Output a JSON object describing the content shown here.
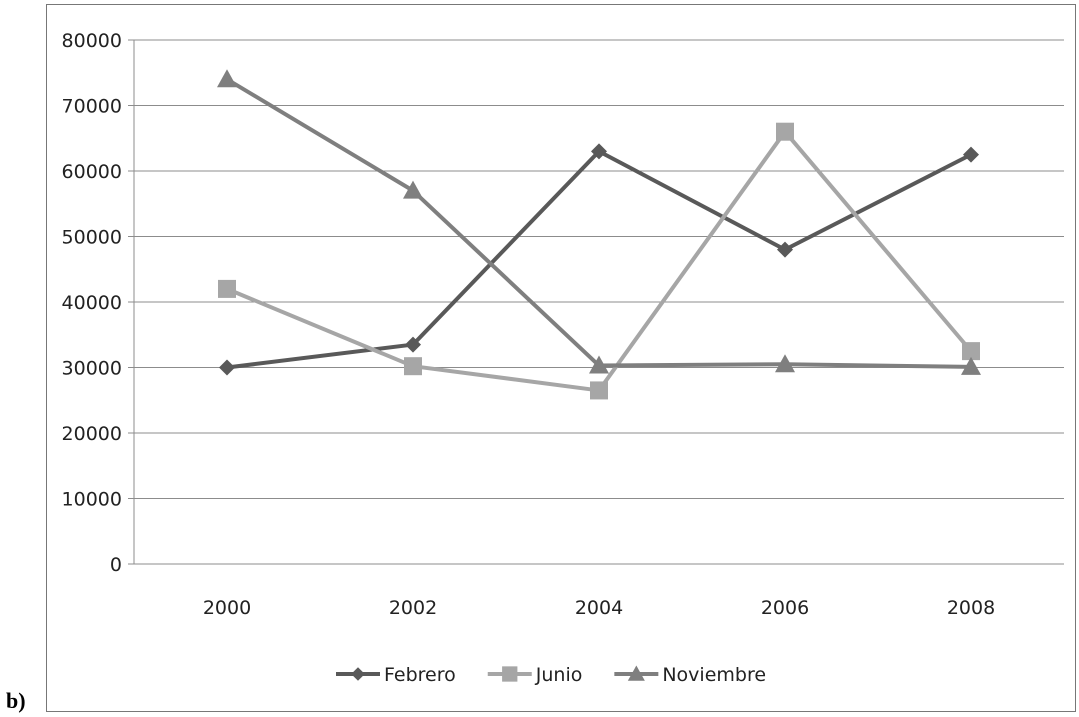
{
  "panel_label": "b)",
  "chart_data": {
    "type": "line",
    "title": "",
    "xlabel": "",
    "ylabel": "",
    "categories": [
      "2000",
      "2002",
      "2004",
      "2006",
      "2008"
    ],
    "ylim": [
      0,
      80000
    ],
    "yticks": [
      0,
      10000,
      20000,
      30000,
      40000,
      50000,
      60000,
      70000,
      80000
    ],
    "grid": "horizontal",
    "legend_position": "bottom",
    "series": [
      {
        "name": "Febrero",
        "values": [
          30000,
          33500,
          63000,
          48000,
          62500
        ],
        "color": "#595959",
        "marker": "diamond"
      },
      {
        "name": "Junio",
        "values": [
          42000,
          30200,
          26500,
          66000,
          32500
        ],
        "color": "#a6a6a6",
        "marker": "square"
      },
      {
        "name": "Noviembre",
        "values": [
          74000,
          57000,
          30300,
          30500,
          30100
        ],
        "color": "#7f7f7f",
        "marker": "triangle"
      }
    ]
  }
}
